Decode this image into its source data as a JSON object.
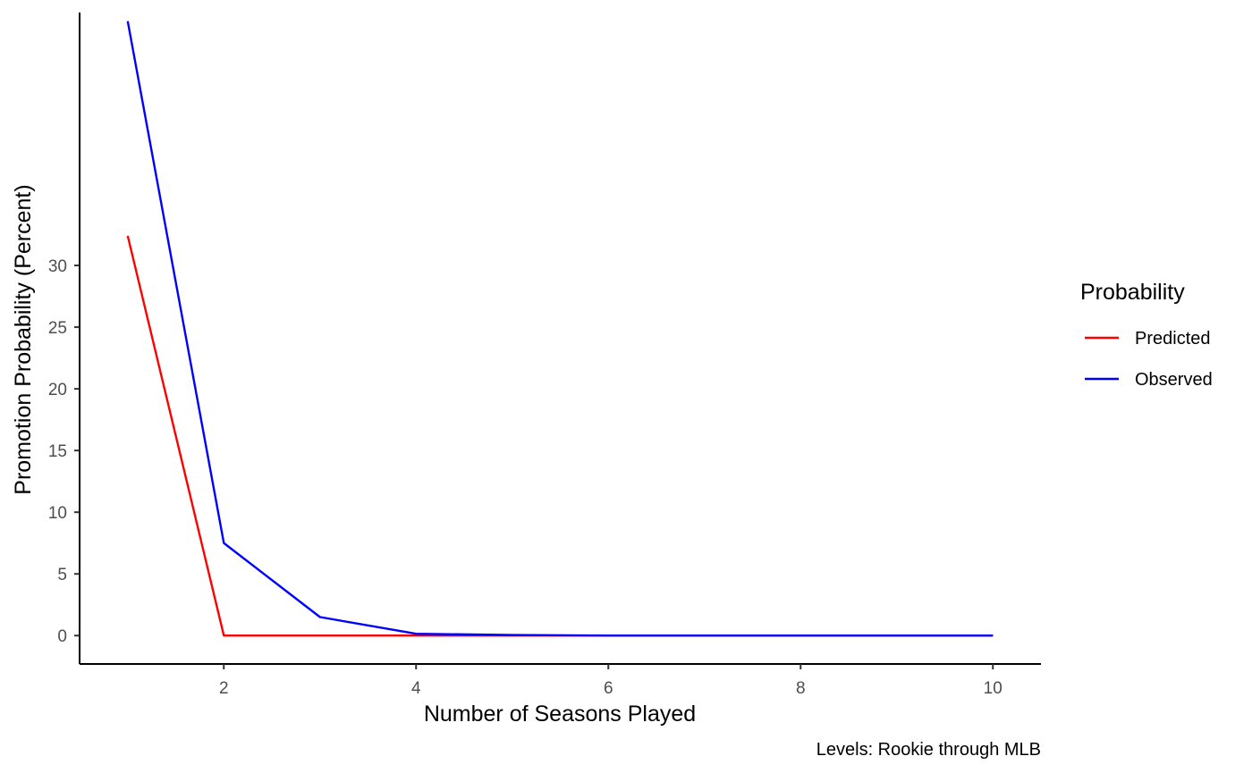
{
  "chart_data": {
    "type": "line",
    "title": "",
    "xlabel": "Number of Seasons Played",
    "ylabel": "Promotion Probability (Percent)",
    "caption": "Levels: Rookie through MLB",
    "x": [
      1,
      2,
      3,
      4,
      5,
      6,
      7,
      8,
      9,
      10
    ],
    "xlim": [
      0.5,
      10.5
    ],
    "ylim": [
      -2.3,
      50.5
    ],
    "x_ticks": [
      2,
      4,
      6,
      8,
      10
    ],
    "y_ticks": [
      0,
      5,
      10,
      15,
      20,
      25,
      30
    ],
    "grid": false,
    "legend": {
      "title": "Probability",
      "position": "right"
    },
    "series": [
      {
        "name": "Predicted",
        "color": "#ff0000",
        "values": [
          32.4,
          0,
          0,
          0,
          0,
          0,
          0,
          0,
          0,
          0
        ]
      },
      {
        "name": "Observed",
        "color": "#0000ff",
        "values": [
          49.8,
          7.5,
          1.5,
          0.15,
          0.05,
          0,
          0,
          0,
          0,
          0
        ]
      }
    ]
  }
}
